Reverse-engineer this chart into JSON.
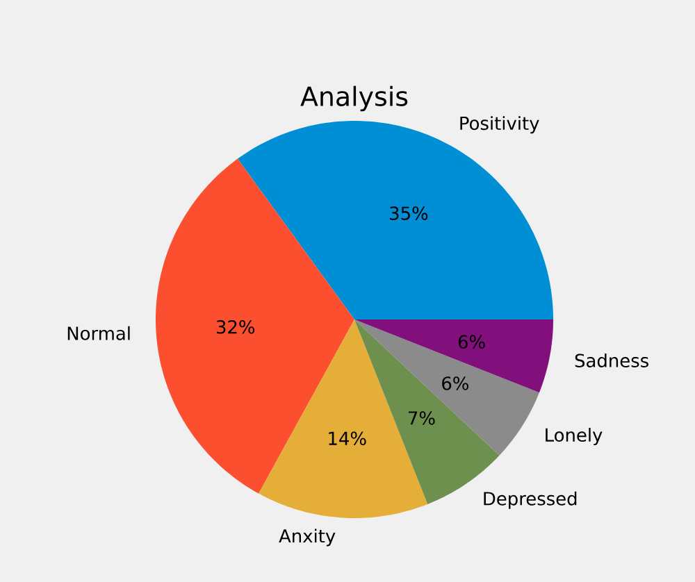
{
  "chart_data": {
    "type": "pie",
    "title": "Analysis",
    "categories": [
      "Positivity",
      "Normal",
      "Anxity",
      "Depressed",
      "Lonely",
      "Sadness"
    ],
    "values": [
      35,
      32,
      14,
      7,
      6,
      6
    ],
    "colors": [
      "#008fd5",
      "#fc4f30",
      "#e5ae38",
      "#6d904f",
      "#8b8b8b",
      "#810f7c"
    ],
    "value_labels": [
      "35%",
      "32%",
      "14%",
      "7%",
      "6%",
      "6%"
    ]
  }
}
